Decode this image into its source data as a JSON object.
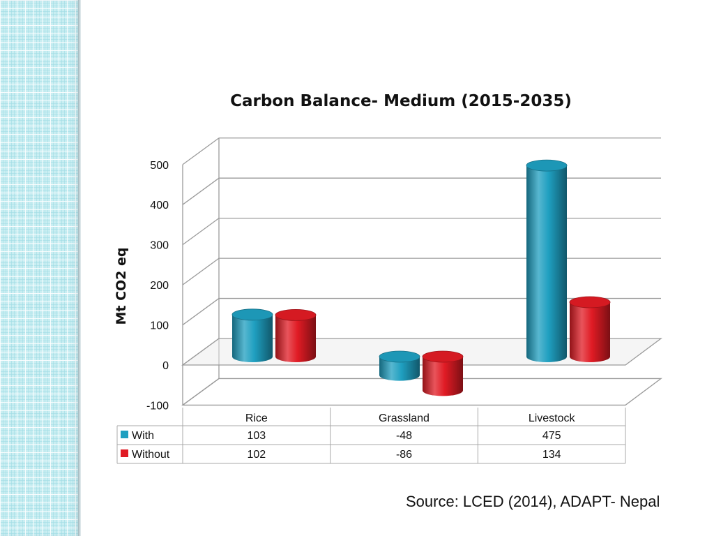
{
  "page": {
    "source": "Source: LCED (2014), ADAPT- Nepal"
  },
  "colors": {
    "with": "#1f9fc0",
    "without": "#e01b24",
    "side_strip": "#c9eef2"
  },
  "chart_data": {
    "type": "bar",
    "style": "3d-cylinder",
    "title": "Carbon Balance- Medium (2015-2035)",
    "xlabel": "",
    "ylabel": "Mt CO2 eq",
    "categories": [
      "Rice",
      "Grassland",
      "Livestock"
    ],
    "series": [
      {
        "name": "With",
        "values": [
          103,
          -48,
          475
        ]
      },
      {
        "name": "Without",
        "values": [
          102,
          -86,
          134
        ]
      }
    ],
    "ylim": [
      -100,
      500
    ],
    "yticks": [
      -100,
      0,
      100,
      200,
      300,
      400,
      500
    ],
    "grid": true,
    "legend": "data-table-below",
    "data_table": {
      "rows": [
        {
          "label": "With",
          "cells": [
            "103",
            "-48",
            "475"
          ]
        },
        {
          "label": "Without",
          "cells": [
            "102",
            "-86",
            "134"
          ]
        }
      ]
    }
  }
}
